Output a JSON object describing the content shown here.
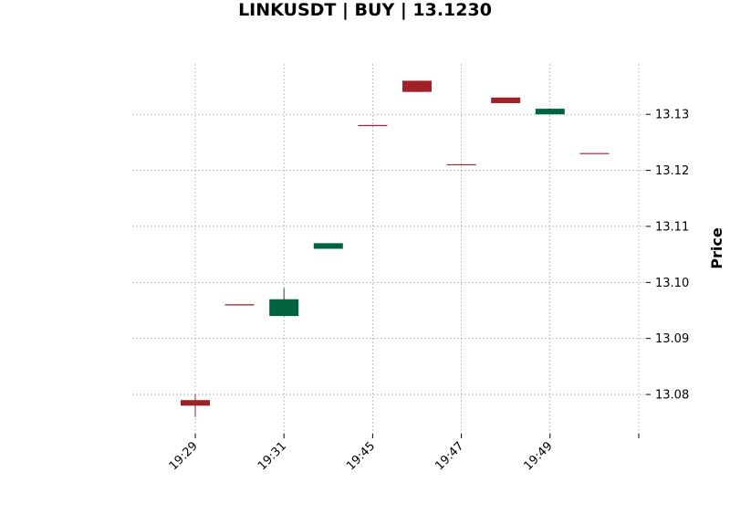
{
  "chart_data": {
    "type": "candlestick",
    "title": "LINKUSDT | BUY | 13.1230",
    "ylabel": "Price",
    "ylim": [
      13.073,
      13.139
    ],
    "yticks": [
      13.08,
      13.09,
      13.1,
      13.11,
      13.12,
      13.13
    ],
    "ytick_labels": [
      "13.08",
      "13.09",
      "13.10",
      "13.11",
      "13.12",
      "13.13"
    ],
    "xtick_labels": [
      "19:29",
      "19:31",
      "19:45",
      "19:47",
      "19:49",
      ""
    ],
    "grid": true,
    "colors": {
      "up": "#006340",
      "down": "#a02128",
      "grid": "#b0b0b0"
    },
    "candles": [
      {
        "open": 13.079,
        "high": 13.08,
        "low": 13.076,
        "close": 13.078
      },
      {
        "open": 13.096,
        "high": 13.096,
        "low": 13.096,
        "close": 13.096
      },
      {
        "open": 13.094,
        "high": 13.099,
        "low": 13.094,
        "close": 13.097
      },
      {
        "open": 13.106,
        "high": 13.107,
        "low": 13.106,
        "close": 13.107
      },
      {
        "open": 13.128,
        "high": 13.128,
        "low": 13.128,
        "close": 13.128
      },
      {
        "open": 13.136,
        "high": 13.136,
        "low": 13.134,
        "close": 13.134
      },
      {
        "open": 13.121,
        "high": 13.121,
        "low": 13.121,
        "close": 13.121
      },
      {
        "open": 13.133,
        "high": 13.133,
        "low": 13.132,
        "close": 13.132
      },
      {
        "open": 13.13,
        "high": 13.131,
        "low": 13.13,
        "close": 13.131
      },
      {
        "open": 13.123,
        "high": 13.123,
        "low": 13.123,
        "close": 13.123
      }
    ]
  }
}
